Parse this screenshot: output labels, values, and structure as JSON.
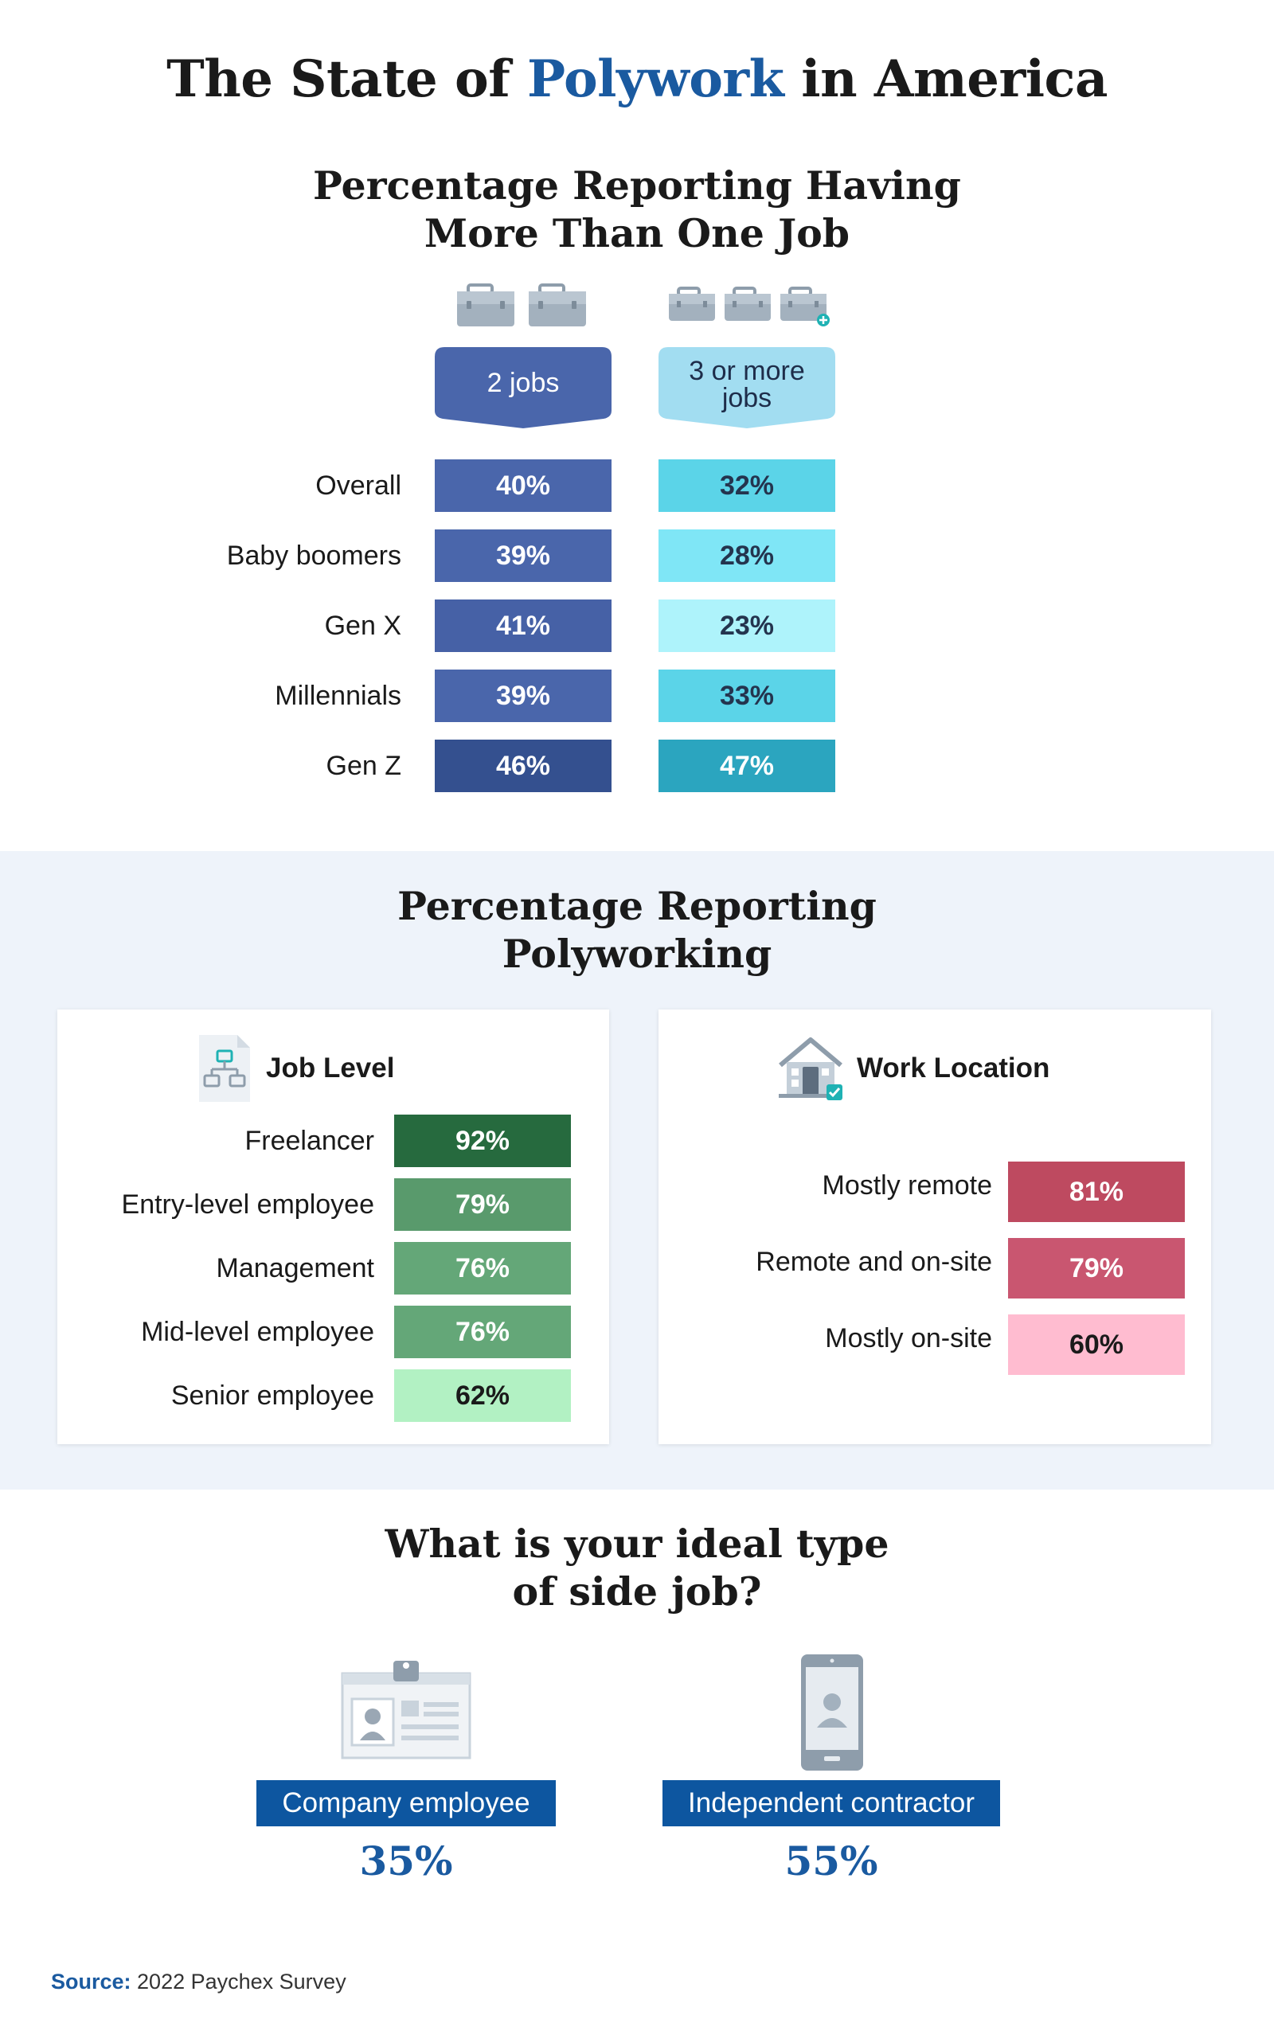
{
  "title": {
    "before": "The State of ",
    "accent": "Polywork",
    "after": " in America"
  },
  "colors": {
    "accent": "#1a5aa0",
    "panel_bg": "#eef3fa"
  },
  "section1": {
    "title_line1": "Percentage Reporting Having",
    "title_line2": "More Than One Job",
    "tag_2jobs": "2 jobs",
    "tag_3jobs_line1": "3 or more",
    "tag_3jobs_line2": "jobs",
    "icons": [
      "briefcase-icon",
      "briefcase-plus-icon"
    ]
  },
  "section2": {
    "title_line1": "Percentage Reporting",
    "title_line2": "Polyworking",
    "job_level_heading": "Job Level",
    "work_location_heading": "Work Location",
    "icons": [
      "org-chart-document-icon",
      "house-check-icon"
    ]
  },
  "section3": {
    "title_line1": "What is your ideal type",
    "title_line2": "of side job?",
    "options": [
      {
        "label": "Company employee",
        "value": "35%"
      },
      {
        "label": "Independent contractor",
        "value": "55%"
      }
    ],
    "icons": [
      "id-badge-icon",
      "smartphone-user-icon"
    ]
  },
  "source": {
    "label": "Source:",
    "text": " 2022 Paychex Survey"
  },
  "chart_data": [
    {
      "type": "table",
      "title": "Percentage Reporting Having More Than One Job",
      "categories": [
        "Overall",
        "Baby boomers",
        "Gen X",
        "Millennials",
        "Gen Z"
      ],
      "series": [
        {
          "name": "2 jobs",
          "values": [
            40,
            39,
            41,
            39,
            46
          ],
          "labels": [
            "40%",
            "39%",
            "41%",
            "39%",
            "46%"
          ],
          "colors": [
            "#4a66ab",
            "#4a66ab",
            "#4661a6",
            "#4a66ab",
            "#34508f"
          ],
          "text_colors": [
            "#ffffff",
            "#ffffff",
            "#ffffff",
            "#ffffff",
            "#ffffff"
          ]
        },
        {
          "name": "3 or more jobs",
          "values": [
            32,
            28,
            23,
            33,
            47
          ],
          "labels": [
            "32%",
            "28%",
            "23%",
            "33%",
            "47%"
          ],
          "colors": [
            "#5bd4e8",
            "#7fe6f6",
            "#aef3fb",
            "#5bd4e8",
            "#2ba5bf"
          ],
          "text_colors": [
            "#24344e",
            "#24344e",
            "#24344e",
            "#24344e",
            "#ffffff"
          ]
        }
      ]
    },
    {
      "type": "table",
      "title": "Job Level",
      "categories": [
        "Freelancer",
        "Entry-level employee",
        "Management",
        "Mid-level employee",
        "Senior employee"
      ],
      "values": [
        92,
        79,
        76,
        76,
        62
      ],
      "labels": [
        "92%",
        "79%",
        "76%",
        "76%",
        "62%"
      ],
      "colors": [
        "#266a3e",
        "#599a6c",
        "#64a778",
        "#64a778",
        "#b2f1c3"
      ],
      "text_colors": [
        "#ffffff",
        "#ffffff",
        "#ffffff",
        "#ffffff",
        "#1a1a1a"
      ]
    },
    {
      "type": "table",
      "title": "Work Location",
      "categories": [
        "Mostly remote",
        "Remote and on-site",
        "Mostly on-site"
      ],
      "values": [
        81,
        79,
        60
      ],
      "labels": [
        "81%",
        "79%",
        "60%"
      ],
      "colors": [
        "#be4a60",
        "#c95670",
        "#ffbcd0"
      ],
      "text_colors": [
        "#ffffff",
        "#ffffff",
        "#1a1a1a"
      ]
    }
  ]
}
